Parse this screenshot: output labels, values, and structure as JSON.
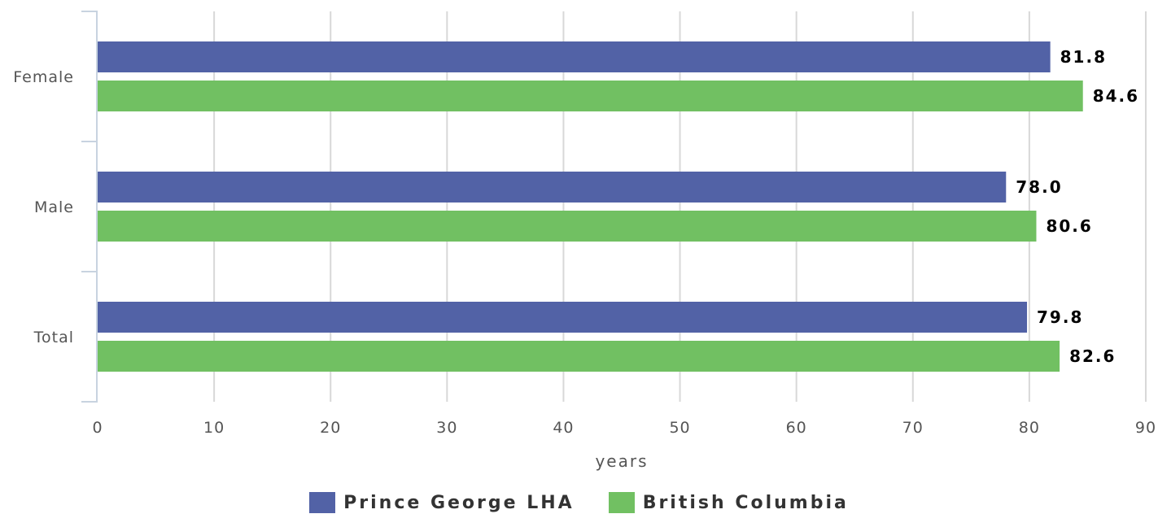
{
  "chart_data": {
    "type": "bar",
    "orientation": "horizontal",
    "categories": [
      "Female",
      "Male",
      "Total"
    ],
    "series": [
      {
        "name": "Prince George LHA",
        "color": "#5262a6",
        "values": [
          81.8,
          78.0,
          79.8
        ],
        "labels": [
          "81.8",
          "78.0",
          "79.8"
        ]
      },
      {
        "name": "British Columbia",
        "color": "#71c062",
        "values": [
          84.6,
          80.6,
          82.6
        ],
        "labels": [
          "84.6",
          "80.6",
          "82.6"
        ]
      }
    ],
    "xlabel": "years",
    "xlim": [
      0,
      90
    ],
    "xticks": [
      0,
      10,
      20,
      30,
      40,
      50,
      60,
      70,
      80,
      90
    ],
    "grid": true,
    "legend_position": "bottom-center"
  }
}
